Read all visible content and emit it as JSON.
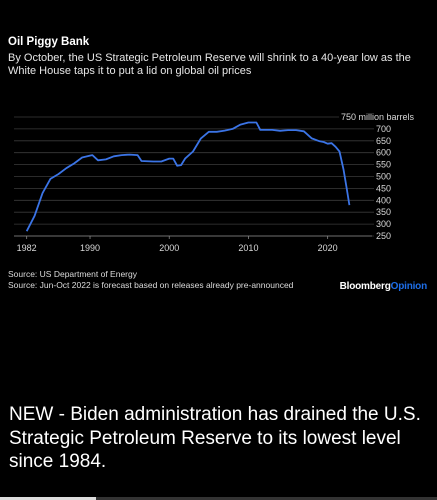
{
  "chart_data": {
    "type": "line",
    "title": "Oil Piggy Bank",
    "subtitle": "By October, the US Strategic Petroleum Reserve will shrink to a 40-year low as the White House taps it to put a lid on global oil prices",
    "unit_label": "750 million barrels",
    "xlim": [
      1980.4,
      2025.6
    ],
    "ylim": [
      250,
      750
    ],
    "x_ticks": [
      1982,
      1990,
      2000,
      2010,
      2020
    ],
    "y_ticks": [
      250,
      300,
      350,
      400,
      450,
      500,
      550,
      600,
      650,
      700
    ],
    "grid": true,
    "series": [
      {
        "color": "#3b74e6",
        "points": [
          [
            1982.0,
            270
          ],
          [
            1983.0,
            335
          ],
          [
            1984.0,
            430
          ],
          [
            1985.0,
            490
          ],
          [
            1986.0,
            510
          ],
          [
            1987.0,
            535
          ],
          [
            1988.0,
            555
          ],
          [
            1989.0,
            580
          ],
          [
            1990.0,
            588
          ],
          [
            1990.3,
            590
          ],
          [
            1991.0,
            568
          ],
          [
            1992.0,
            572
          ],
          [
            1993.0,
            585
          ],
          [
            1994.0,
            590
          ],
          [
            1995.0,
            592
          ],
          [
            1996.0,
            590
          ],
          [
            1996.5,
            565
          ],
          [
            1998.0,
            563
          ],
          [
            1999.0,
            563
          ],
          [
            2000.0,
            575
          ],
          [
            2000.5,
            575
          ],
          [
            2001.0,
            545
          ],
          [
            2001.5,
            548
          ],
          [
            2002.0,
            575
          ],
          [
            2003.0,
            605
          ],
          [
            2004.0,
            660
          ],
          [
            2005.0,
            688
          ],
          [
            2006.0,
            688
          ],
          [
            2007.0,
            693
          ],
          [
            2008.0,
            700
          ],
          [
            2009.0,
            718
          ],
          [
            2010.0,
            727
          ],
          [
            2011.0,
            727
          ],
          [
            2011.5,
            696
          ],
          [
            2012.0,
            696
          ],
          [
            2013.0,
            696
          ],
          [
            2014.0,
            692
          ],
          [
            2015.0,
            695
          ],
          [
            2016.0,
            695
          ],
          [
            2017.0,
            690
          ],
          [
            2018.0,
            660
          ],
          [
            2019.0,
            648
          ],
          [
            2019.5,
            645
          ],
          [
            2020.0,
            638
          ],
          [
            2020.5,
            640
          ],
          [
            2021.0,
            625
          ],
          [
            2021.5,
            605
          ],
          [
            2022.0,
            530
          ],
          [
            2022.4,
            450
          ],
          [
            2022.75,
            380
          ]
        ]
      }
    ]
  },
  "source_1": "Source: US Department of Energy",
  "source_2": "Source: Jun-Oct 2022 is forecast based on releases already pre-announced",
  "brand_part1": "Bloomberg",
  "brand_part2": "Opinion",
  "colors": {
    "background": "#000000",
    "line": "#3b74e6",
    "grid": "#3a3a3a",
    "brand_accent": "#1e6ee8"
  },
  "caption": "NEW - Biden administration has drained the U.S. Strategic Petroleum Reserve to its lowest level since 1984.",
  "video_progress": 0.22
}
